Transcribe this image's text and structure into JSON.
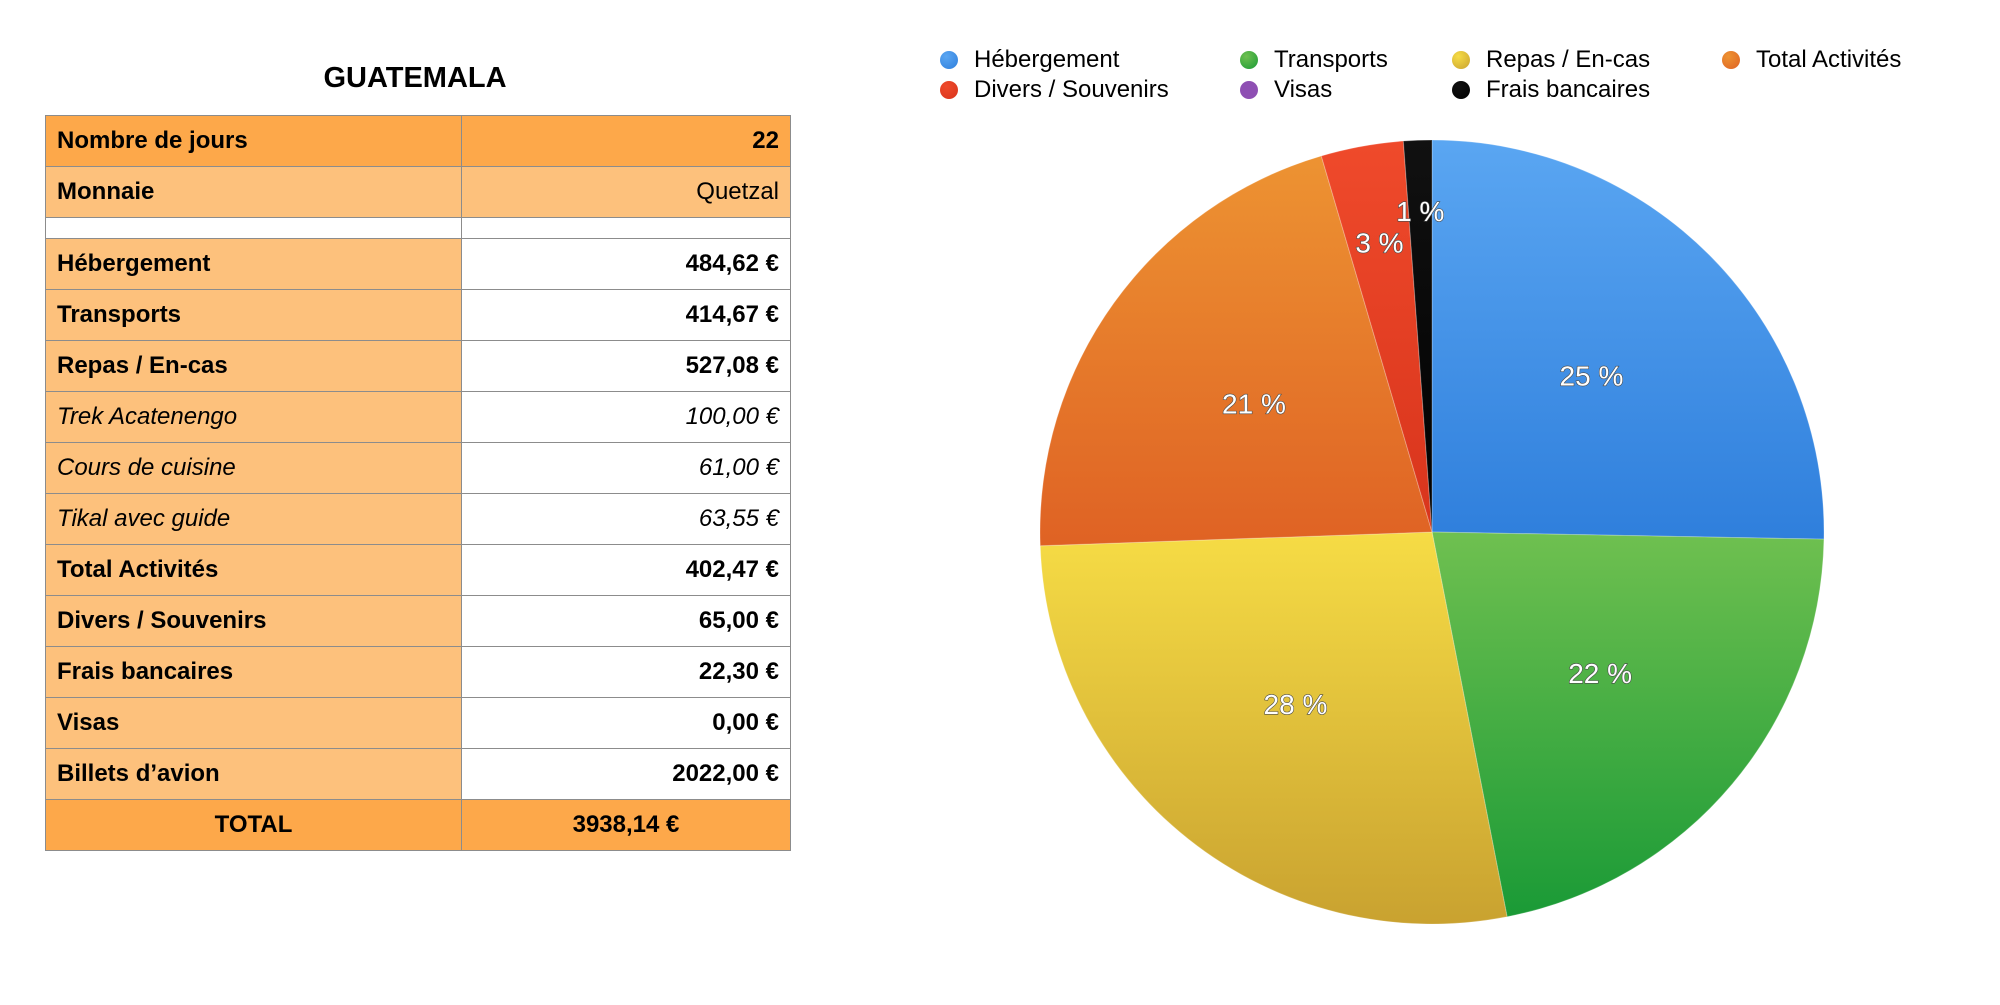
{
  "table": {
    "title": "GUATEMALA",
    "rows": [
      {
        "label": "Nombre de jours",
        "value": "22",
        "style": "header"
      },
      {
        "label": "Monnaie",
        "value": "Quetzal",
        "style": "header2"
      },
      {
        "label": "",
        "value": "",
        "style": "spacer"
      },
      {
        "label": "Hébergement",
        "value": "484,62 €",
        "style": "bold"
      },
      {
        "label": "Transports",
        "value": "414,67 €",
        "style": "bold"
      },
      {
        "label": "Repas / En-cas",
        "value": "527,08 €",
        "style": "bold"
      },
      {
        "label": "Trek Acatenengo",
        "value": "100,00 €",
        "style": "italic"
      },
      {
        "label": "Cours de cuisine",
        "value": "61,00 €",
        "style": "italic"
      },
      {
        "label": "Tikal avec guide",
        "value": "63,55 €",
        "style": "italic"
      },
      {
        "label": "Total Activités",
        "value": "402,47 €",
        "style": "bold"
      },
      {
        "label": "Divers / Souvenirs",
        "value": "65,00 €",
        "style": "bold"
      },
      {
        "label": "Frais bancaires",
        "value": "22,30 €",
        "style": "bold"
      },
      {
        "label": "Visas",
        "value": "0,00 €",
        "style": "bold"
      },
      {
        "label": "Billets d’avion",
        "value": "2022,00 €",
        "style": "bold"
      },
      {
        "label": "TOTAL",
        "value": "3938,14 €",
        "style": "total"
      }
    ]
  },
  "chart_data": {
    "type": "pie",
    "title": "",
    "legend_position": "top",
    "slices": [
      {
        "name": "Hébergement",
        "value": 484.62,
        "label": "25 %",
        "color": "#2f7fdc",
        "light": "#5aa6f2"
      },
      {
        "name": "Transports",
        "value": 414.67,
        "label": "22 %",
        "color": "#1a9a36",
        "light": "#6fc050"
      },
      {
        "name": "Repas / En-cas",
        "value": 527.08,
        "label": "28 %",
        "color": "#c9a230",
        "light": "#f6dc45"
      },
      {
        "name": "Total Activités",
        "value": 402.47,
        "label": "21 %",
        "color": "#df6224",
        "light": "#ed9332"
      },
      {
        "name": "Divers / Souvenirs",
        "value": 65.0,
        "label": "3 %",
        "color": "#d8341c",
        "light": "#ef4a2b"
      },
      {
        "name": "Visas",
        "value": 0.0,
        "label": "",
        "color": "#8e4fb3",
        "light": "#8e4fb3"
      },
      {
        "name": "Frais bancaires",
        "value": 22.3,
        "label": "1 %",
        "color": "#000000",
        "light": "#111111"
      }
    ]
  }
}
